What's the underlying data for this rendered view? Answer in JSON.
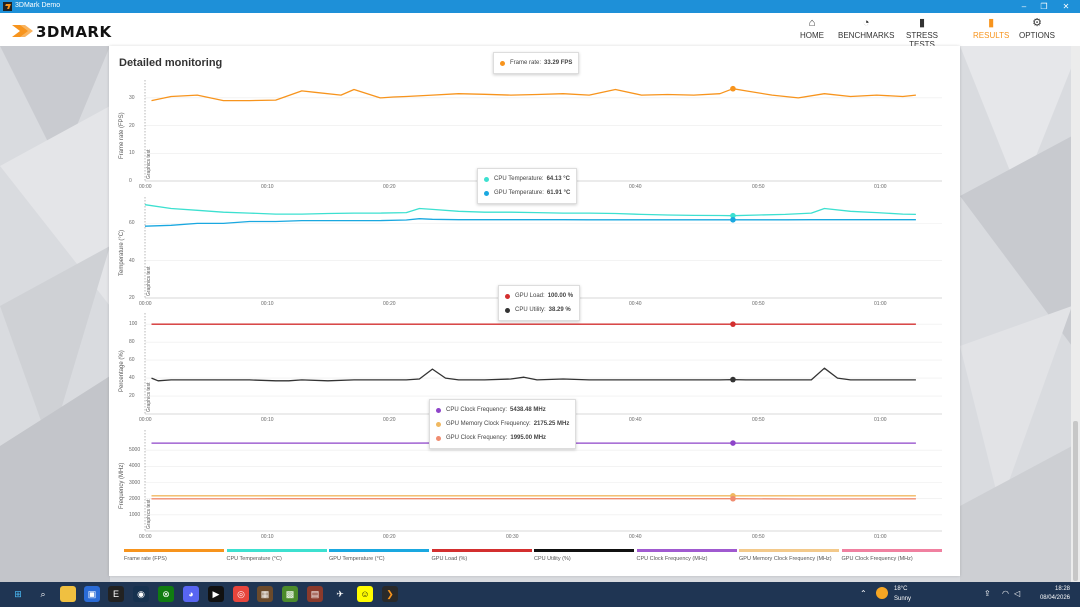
{
  "window": {
    "title": "3DMark Demo",
    "min": "–",
    "restore": "❐",
    "close": "✕"
  },
  "brand": {
    "name": "3DMARK",
    "accent": "#f7941d"
  },
  "nav": [
    {
      "label": "HOME",
      "icon": "home-icon",
      "glyph": "⌂",
      "active": false
    },
    {
      "label": "BENCHMARKS",
      "icon": "gauge-icon",
      "glyph": "◔",
      "active": false
    },
    {
      "label": "STRESS TESTS",
      "icon": "bars-icon",
      "glyph": "▮",
      "active": false
    },
    {
      "label": "RESULTS",
      "icon": "results-icon",
      "glyph": "▮",
      "active": true
    },
    {
      "label": "OPTIONS",
      "icon": "gear-icon",
      "glyph": "⚙",
      "active": false
    }
  ],
  "panel": {
    "title": "Detailed monitoring"
  },
  "charts": {
    "x_ticks": [
      "00:00",
      "00:10",
      "00:20",
      "00:30",
      "00:40",
      "00:50",
      "01:00"
    ],
    "section_label": "Graphics test",
    "fps": {
      "ylabel": "Frame rate (FPS)",
      "yticks": [
        "30",
        "20",
        "10",
        "0"
      ]
    },
    "temp": {
      "ylabel": "Temperature (°C)",
      "yticks": [
        "60",
        "40",
        "20"
      ]
    },
    "pct": {
      "ylabel": "Percentage (%)",
      "yticks": [
        "100",
        "80",
        "60",
        "40",
        "20"
      ]
    },
    "freq": {
      "ylabel": "Frequency (MHz)",
      "yticks": [
        "5000",
        "4000",
        "3000",
        "2000",
        "1000"
      ]
    }
  },
  "tooltips": {
    "fps": [
      {
        "label": "Frame rate:",
        "value": "33.29 FPS",
        "color": "#f7941d"
      }
    ],
    "temp": [
      {
        "label": "CPU Temperature:",
        "value": "64.13 °C",
        "color": "#3de0d0"
      },
      {
        "label": "GPU Temperature:",
        "value": "61.91 °C",
        "color": "#1aa8e0"
      }
    ],
    "pct": [
      {
        "label": "GPU Load:",
        "value": "100.00 %",
        "color": "#d32f2f"
      },
      {
        "label": "CPU Utility:",
        "value": "38.29 %",
        "color": "#333333"
      }
    ],
    "freq": [
      {
        "label": "CPU Clock Frequency:",
        "value": "5438.48 MHz",
        "color": "#8e44c9"
      },
      {
        "label": "GPU Memory Clock Frequency:",
        "value": "2175.25 MHz",
        "color": "#f0b860"
      },
      {
        "label": "GPU Clock Frequency:",
        "value": "1995.00 MHz",
        "color": "#f08c70"
      }
    ]
  },
  "legend": [
    {
      "label": "Frame rate (FPS)",
      "color": "#f7941d"
    },
    {
      "label": "CPU Temperature (°C)",
      "color": "#3de0d0"
    },
    {
      "label": "GPU Temperature (°C)",
      "color": "#1aa8e0"
    },
    {
      "label": "GPU Load (%)",
      "color": "#d32f2f"
    },
    {
      "label": "CPU Utility (%)",
      "color": "#111111"
    },
    {
      "label": "CPU Clock Frequency (MHz)",
      "color": "#a05ad0"
    },
    {
      "label": "GPU Memory Clock Frequency (MHz)",
      "color": "#f3c98a"
    },
    {
      "label": "GPU Clock Frequency (MHz)",
      "color": "#f080a0"
    }
  ],
  "chart_data": [
    {
      "type": "line",
      "ylabel": "Frame rate (FPS)",
      "ylim": [
        0,
        35
      ],
      "x": [
        0.5,
        2,
        4,
        6,
        8,
        10,
        12,
        13,
        15,
        16,
        18,
        19,
        20,
        22,
        24,
        26,
        28,
        30,
        32,
        34,
        36,
        38,
        40,
        42,
        44,
        45,
        46,
        48,
        50,
        52,
        54,
        56,
        58,
        59
      ],
      "series": [
        {
          "name": "Frame rate",
          "color": "#f7941d",
          "values": [
            29,
            30.5,
            31,
            29,
            29,
            29.2,
            32.5,
            32,
            31,
            33,
            30,
            30.3,
            30.5,
            31,
            31.5,
            31.3,
            31,
            31.2,
            31.5,
            31,
            33,
            31,
            31.2,
            31,
            31.5,
            33.3,
            32.5,
            31,
            30,
            31.5,
            30.5,
            31,
            30.5,
            31
          ]
        }
      ]
    },
    {
      "type": "line",
      "ylabel": "Temperature (°C)",
      "ylim": [
        20,
        72
      ],
      "x": [
        0,
        2,
        4,
        6,
        8,
        10,
        12,
        14,
        16,
        18,
        20,
        21,
        22,
        24,
        26,
        28,
        30,
        32,
        34,
        36,
        38,
        40,
        42,
        44,
        45,
        47,
        49,
        51,
        52,
        54,
        56,
        58,
        59
      ],
      "series": [
        {
          "name": "CPU Temperature",
          "color": "#3de0d0",
          "values": [
            70,
            68,
            67,
            66,
            65.5,
            65,
            65,
            65.3,
            65.5,
            65.5,
            65.8,
            68,
            67.5,
            66.5,
            66,
            66,
            65.8,
            65.5,
            65.5,
            65.3,
            64.8,
            64.5,
            64.3,
            64.2,
            64.13,
            64.5,
            64.8,
            65.5,
            68,
            66.5,
            65.8,
            65,
            64.8
          ]
        },
        {
          "name": "GPU Temperature",
          "color": "#1aa8e0",
          "values": [
            58.5,
            59,
            60,
            60,
            61,
            61,
            61.5,
            61.5,
            61.5,
            61.5,
            61.8,
            62.5,
            62.2,
            62,
            62,
            62,
            62,
            62,
            61.9,
            61.9,
            61.9,
            61.9,
            61.9,
            61.9,
            61.91,
            61.9,
            61.9,
            62,
            62,
            62,
            62,
            62,
            62
          ]
        }
      ]
    },
    {
      "type": "line",
      "ylabel": "Percentage (%)",
      "ylim": [
        0,
        108
      ],
      "x": [
        0.5,
        1,
        2,
        4,
        6,
        8,
        10,
        11,
        12,
        14,
        16,
        18,
        20,
        21,
        22,
        23,
        24,
        26,
        28,
        29,
        30,
        32,
        34,
        36,
        38,
        40,
        42,
        44,
        45,
        46,
        48,
        50,
        51,
        52,
        53,
        54,
        56,
        58,
        59
      ],
      "series": [
        {
          "name": "GPU Load",
          "color": "#d32f2f",
          "values": [
            100,
            100,
            100,
            100,
            100,
            100,
            100,
            100,
            100,
            100,
            100,
            100,
            100,
            100,
            100,
            100,
            100,
            100,
            100,
            100,
            100,
            100,
            100,
            100,
            100,
            100,
            100,
            100,
            100,
            100,
            100,
            100,
            100,
            100,
            100,
            100,
            100,
            100,
            100
          ]
        },
        {
          "name": "CPU Utility",
          "color": "#333333",
          "values": [
            40,
            37,
            38,
            38,
            38,
            38,
            37,
            37,
            38,
            37,
            38,
            38,
            38,
            39,
            50,
            40,
            38,
            38,
            39,
            41,
            38,
            39,
            38,
            38,
            38,
            38,
            38,
            38,
            38.29,
            38,
            38,
            38,
            38,
            51,
            40,
            38,
            38,
            38,
            38
          ]
        }
      ]
    },
    {
      "type": "line",
      "ylabel": "Frequency (MHz)",
      "ylim": [
        0,
        6000
      ],
      "x": [
        0.5,
        10,
        20,
        27,
        30,
        40,
        45,
        50,
        59
      ],
      "series": [
        {
          "name": "CPU Clock Frequency",
          "color": "#8e44c9",
          "values": [
            5440,
            5438,
            5440,
            5455,
            5440,
            5438,
            5438.48,
            5438,
            5440
          ]
        },
        {
          "name": "GPU Memory Clock Frequency",
          "color": "#f0b860",
          "values": [
            2175,
            2175,
            2175,
            2175,
            2175,
            2175,
            2175.25,
            2175,
            2175
          ]
        },
        {
          "name": "GPU Clock Frequency",
          "color": "#f08c70",
          "values": [
            1990,
            1995,
            1995,
            1995,
            1995,
            1995,
            1995,
            1980,
            1990
          ]
        }
      ]
    }
  ],
  "taskbar": {
    "icons": [
      {
        "name": "windows-start-icon",
        "glyph": "⊞",
        "bg": "transparent",
        "fg": "#4cc2ff"
      },
      {
        "name": "search-icon",
        "glyph": "⌕",
        "bg": "transparent",
        "fg": "#ffffff"
      },
      {
        "name": "file-explorer-icon",
        "glyph": "▬",
        "bg": "#f0c040",
        "fg": "#f0c040"
      },
      {
        "name": "store-icon",
        "glyph": "▣",
        "bg": "#2a6bd6",
        "fg": "#ffffff"
      },
      {
        "name": "epic-games-icon",
        "glyph": "E",
        "bg": "#222222",
        "fg": "#ffffff"
      },
      {
        "name": "steam-icon",
        "glyph": "◉",
        "bg": "#16314f",
        "fg": "#ffffff"
      },
      {
        "name": "xbox-icon",
        "glyph": "⊗",
        "bg": "#107c10",
        "fg": "#ffffff"
      },
      {
        "name": "discord-icon",
        "glyph": "◕",
        "bg": "#5865f2",
        "fg": "#ffffff"
      },
      {
        "name": "media-player-icon",
        "glyph": "▶",
        "bg": "#111111",
        "fg": "#ffffff"
      },
      {
        "name": "chrome-icon",
        "glyph": "◎",
        "bg": "#e8453c",
        "fg": "#ffffff"
      },
      {
        "name": "package-icon",
        "glyph": "▦",
        "bg": "#6b4a2b",
        "fg": "#ffffff"
      },
      {
        "name": "minecraft-icon",
        "glyph": "▩",
        "bg": "#4c8b2b",
        "fg": "#ffffff"
      },
      {
        "name": "game-icon",
        "glyph": "▤",
        "bg": "#8b3a2b",
        "fg": "#ffffff"
      },
      {
        "name": "airplane-icon",
        "glyph": "✈",
        "bg": "transparent",
        "fg": "#ffffff"
      },
      {
        "name": "snapchat-icon",
        "glyph": "☺",
        "bg": "#fffc00",
        "fg": "#111111"
      },
      {
        "name": "3dmark-icon",
        "glyph": "❯",
        "bg": "#2a2a2a",
        "fg": "#f7941d"
      }
    ],
    "weather": {
      "temp": "18°C",
      "desc": "Sunny"
    },
    "time": "18:28",
    "date": "08/04/2026"
  }
}
